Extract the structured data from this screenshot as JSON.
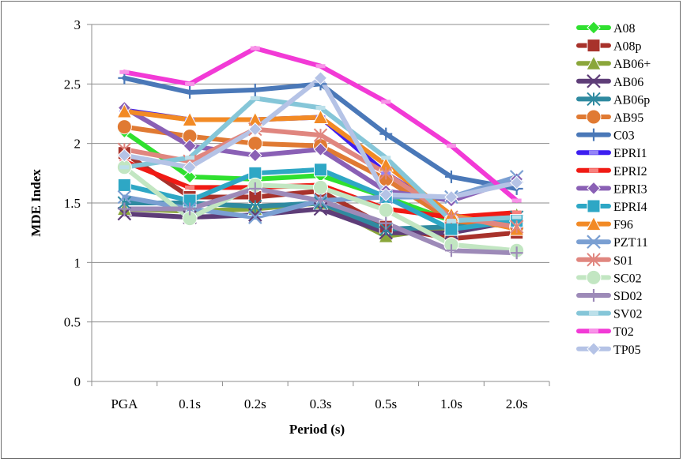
{
  "chart_data": {
    "type": "line",
    "title": "",
    "xlabel": "Period (s)",
    "ylabel": "MDE Index",
    "categories": [
      "PGA",
      "0.1s",
      "0.2s",
      "0.3s",
      "0.5s",
      "1.0s",
      "2.0s"
    ],
    "ylim": [
      0,
      3
    ],
    "yticks": [
      0,
      0.5,
      1,
      1.5,
      2,
      2.5,
      3
    ],
    "ytick_labels": [
      "0",
      "0.5",
      "1",
      "1.5",
      "2",
      "2.5",
      "3"
    ],
    "grid": "horizontal",
    "legend_position": "right",
    "series": [
      {
        "name": "A08",
        "color": "#2fe02f",
        "marker": "diamond",
        "values": [
          2.1,
          1.72,
          1.7,
          1.73,
          1.55,
          1.35,
          1.3
        ]
      },
      {
        "name": "A08p",
        "color": "#a8322b",
        "marker": "square",
        "values": [
          1.92,
          1.55,
          1.55,
          1.6,
          1.3,
          1.2,
          1.25
        ]
      },
      {
        "name": "AB06+",
        "color": "#8aa63a",
        "marker": "triangle",
        "values": [
          1.45,
          1.43,
          1.45,
          1.5,
          1.22,
          1.3,
          1.4
        ]
      },
      {
        "name": "AB06",
        "color": "#5e3d78",
        "marker": "x",
        "values": [
          1.41,
          1.38,
          1.4,
          1.45,
          1.25,
          1.25,
          1.35
        ]
      },
      {
        "name": "AB06p",
        "color": "#2f8aa0",
        "marker": "star",
        "values": [
          1.5,
          1.5,
          1.47,
          1.5,
          1.28,
          1.3,
          1.38
        ]
      },
      {
        "name": "AB95",
        "color": "#e07a33",
        "marker": "circle",
        "values": [
          2.14,
          2.06,
          2.0,
          1.98,
          1.7,
          1.35,
          1.3
        ]
      },
      {
        "name": "C03",
        "color": "#4a78b8",
        "marker": "plus",
        "values": [
          2.55,
          2.43,
          2.45,
          2.5,
          2.08,
          1.72,
          1.62
        ]
      },
      {
        "name": "EPRI1",
        "color": "#3d1ef0",
        "marker": "dash",
        "values": [
          2.28,
          2.2,
          2.2,
          2.22,
          1.75,
          1.4,
          1.3
        ]
      },
      {
        "name": "EPRI2",
        "color": "#f01a14",
        "marker": "dash",
        "values": [
          1.85,
          1.63,
          1.63,
          1.65,
          1.45,
          1.38,
          1.42
        ]
      },
      {
        "name": "EPRI3",
        "color": "#8a60b5",
        "marker": "diamond",
        "values": [
          2.3,
          1.98,
          1.9,
          1.95,
          1.6,
          1.52,
          1.7
        ]
      },
      {
        "name": "EPRI4",
        "color": "#2ea7c5",
        "marker": "square",
        "values": [
          1.65,
          1.52,
          1.75,
          1.78,
          1.55,
          1.28,
          1.35
        ]
      },
      {
        "name": "F96",
        "color": "#f28a25",
        "marker": "triangle",
        "values": [
          2.27,
          2.2,
          2.2,
          2.22,
          1.82,
          1.4,
          1.28
        ]
      },
      {
        "name": "PZT11",
        "color": "#7a9fd2",
        "marker": "x",
        "values": [
          1.55,
          1.45,
          1.38,
          1.52,
          1.55,
          1.55,
          1.72
        ]
      },
      {
        "name": "S01",
        "color": "#e0867f",
        "marker": "star",
        "values": [
          1.95,
          1.85,
          2.12,
          2.07,
          1.75,
          1.38,
          1.3
        ]
      },
      {
        "name": "SC02",
        "color": "#c2e6c2",
        "marker": "circle",
        "values": [
          1.8,
          1.37,
          1.65,
          1.63,
          1.44,
          1.15,
          1.1
        ]
      },
      {
        "name": "SD02",
        "color": "#9d8ab8",
        "marker": "plus",
        "values": [
          1.45,
          1.45,
          1.62,
          1.52,
          1.33,
          1.1,
          1.08
        ]
      },
      {
        "name": "SV02",
        "color": "#85c6d8",
        "marker": "dash",
        "values": [
          1.8,
          1.88,
          2.38,
          2.3,
          1.88,
          1.35,
          1.38
        ]
      },
      {
        "name": "T02",
        "color": "#f23ad6",
        "marker": "dash",
        "values": [
          2.6,
          2.5,
          2.8,
          2.65,
          2.35,
          1.98,
          1.52
        ]
      },
      {
        "name": "TP05",
        "color": "#b5c3e6",
        "marker": "diamond",
        "values": [
          1.9,
          1.8,
          2.12,
          2.55,
          1.57,
          1.55,
          1.67
        ]
      }
    ]
  }
}
